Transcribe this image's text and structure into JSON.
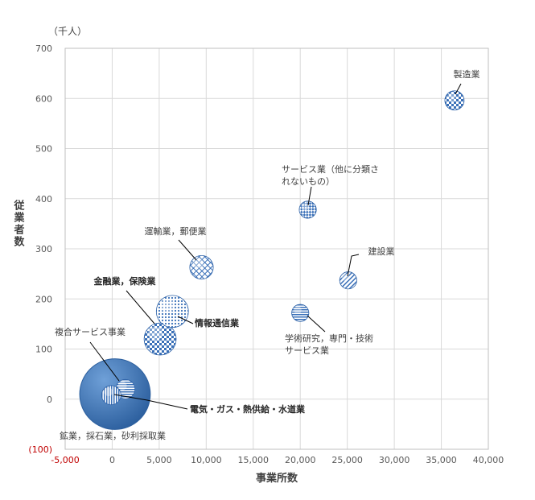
{
  "chart_data": {
    "type": "bubble",
    "unit_label": "（千人）",
    "xlabel": "事業所数",
    "ylabel": "従業者数",
    "xlim": [
      -5000,
      40000
    ],
    "ylim": [
      -100,
      700
    ],
    "x_ticks": [
      -5000,
      0,
      5000,
      10000,
      15000,
      20000,
      25000,
      30000,
      35000,
      40000
    ],
    "x_tick_labels": [
      "-5,000",
      "0",
      "5,000",
      "10,000",
      "15,000",
      "20,000",
      "25,000",
      "30,000",
      "35,000",
      "40,000"
    ],
    "y_ticks": [
      -100,
      0,
      100,
      200,
      300,
      400,
      500,
      600,
      700
    ],
    "y_tick_labels": [
      "(100)",
      "0",
      "100",
      "200",
      "300",
      "400",
      "500",
      "600",
      "700"
    ],
    "grid": true,
    "series": [
      {
        "name": "製造業",
        "x": 36400,
        "y": 596,
        "size": 9,
        "pattern": "checker",
        "label_bold": false
      },
      {
        "name": "サービス業（他に分類されないもの）",
        "name_lines": [
          "サービス業（他に分類さ",
          "れないもの）"
        ],
        "x": 20800,
        "y": 378,
        "size": 8,
        "pattern": "cross",
        "label_bold": false
      },
      {
        "name": "建設業",
        "x": 25100,
        "y": 237,
        "size": 8,
        "pattern": "diag",
        "label_bold": false
      },
      {
        "name": "運輸業，郵便業",
        "x": 9500,
        "y": 263,
        "size": 11,
        "pattern": "grid",
        "label_bold": false
      },
      {
        "name": "学術研究，専門・技術サービス業",
        "name_lines": [
          "学術研究，専門・技術",
          "サービス業"
        ],
        "x": 20000,
        "y": 172,
        "size": 8,
        "pattern": "hstripe",
        "label_bold": false
      },
      {
        "name": "金融業，保険業",
        "x": 5100,
        "y": 120,
        "size": 15,
        "pattern": "checker",
        "label_bold": true
      },
      {
        "name": "情報通信業",
        "x": 6400,
        "y": 175,
        "size": 15,
        "pattern": "dots",
        "label_bold": true
      },
      {
        "name": "複合サービス事業",
        "x": 1400,
        "y": 20,
        "size": 9,
        "pattern": "hstripe",
        "label_bold": false
      },
      {
        "name": "電気・ガス・熱供給・水道業",
        "x": -100,
        "y": 8,
        "size": 9,
        "pattern": "vstripe",
        "label_bold": true
      },
      {
        "name": "鉱業，採石業，砂利採取業",
        "x": 300,
        "y": 10,
        "size": 33,
        "pattern": "solid",
        "label_bold": false
      }
    ]
  }
}
